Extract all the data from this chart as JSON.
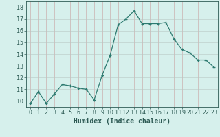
{
  "x": [
    0,
    1,
    2,
    3,
    4,
    5,
    6,
    7,
    8,
    9,
    10,
    11,
    12,
    13,
    14,
    15,
    16,
    17,
    18,
    19,
    20,
    21,
    22,
    23
  ],
  "y": [
    9.8,
    10.8,
    9.8,
    10.6,
    11.4,
    11.3,
    11.1,
    11.0,
    10.1,
    12.2,
    13.9,
    16.5,
    17.0,
    17.7,
    16.6,
    16.6,
    16.6,
    16.7,
    15.3,
    14.4,
    14.1,
    13.5,
    13.5,
    12.9
  ],
  "bg_color": "#d6f0ec",
  "grid_color_v": "#c9a0a0",
  "grid_color_h": "#b8c8c4",
  "line_color": "#2d7a70",
  "xlabel": "Humidex (Indice chaleur)",
  "ylim": [
    9.5,
    18.5
  ],
  "yticks": [
    10,
    11,
    12,
    13,
    14,
    15,
    16,
    17,
    18
  ],
  "xticks": [
    0,
    1,
    2,
    3,
    4,
    5,
    6,
    7,
    8,
    9,
    10,
    11,
    12,
    13,
    14,
    15,
    16,
    17,
    18,
    19,
    20,
    21,
    22,
    23
  ],
  "xlim": [
    -0.5,
    23.5
  ],
  "tick_color": "#2d5a54",
  "label_fontsize": 6.0,
  "xlabel_fontsize": 7.0
}
